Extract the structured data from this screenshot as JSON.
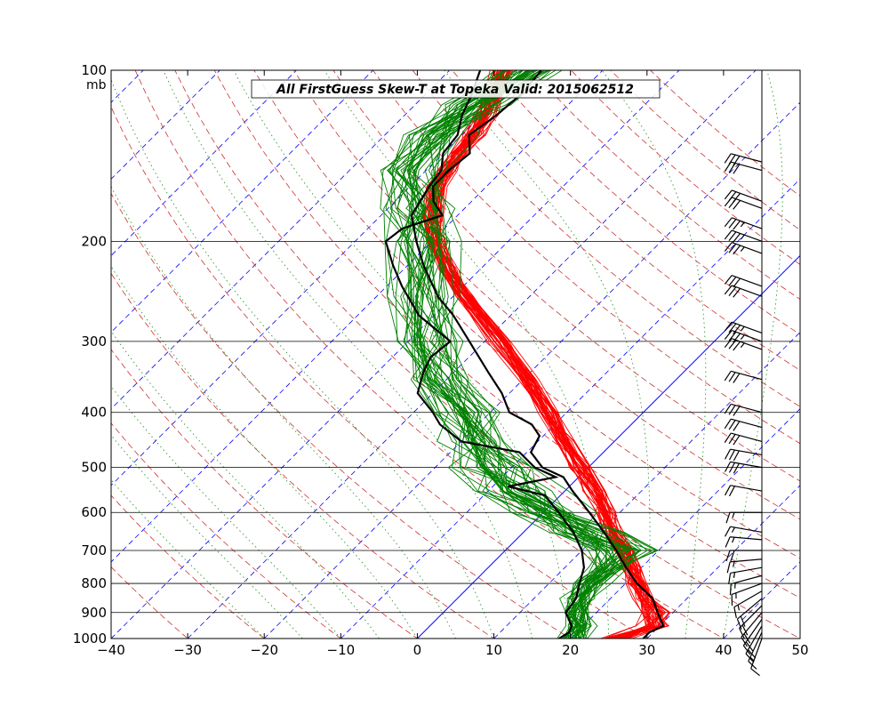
{
  "chart_data": {
    "type": "line",
    "title": "All FirstGuess  Skew-T at Topeka   Valid: 2015062512",
    "pressure_unit": "mb",
    "xlim": [
      -40,
      50
    ],
    "x_ticks": [
      -40,
      -30,
      -20,
      -10,
      0,
      10,
      20,
      30,
      40,
      50
    ],
    "p_ticks": [
      100,
      200,
      300,
      400,
      500,
      600,
      700,
      800,
      900,
      1000
    ],
    "p_range": [
      1000,
      100
    ],
    "colors": {
      "temperature": "#ff0000",
      "dewpoint": "#008000",
      "observed": "#000000",
      "isotherm": "#0000ff",
      "dry_adiabat": "#cc3333",
      "moist_adiabat": "#339933",
      "grid": "#000000"
    },
    "observed_temperature": [
      {
        "p": 1000,
        "t": 29.5
      },
      {
        "p": 975,
        "t": 29.5
      },
      {
        "p": 950,
        "t": 30.5
      },
      {
        "p": 900,
        "t": 28.0
      },
      {
        "p": 850,
        "t": 25.5
      },
      {
        "p": 800,
        "t": 21.5
      },
      {
        "p": 750,
        "t": 18.0
      },
      {
        "p": 700,
        "t": 14.5
      },
      {
        "p": 650,
        "t": 10.5
      },
      {
        "p": 600,
        "t": 6.0
      },
      {
        "p": 550,
        "t": 1.0
      },
      {
        "p": 520,
        "t": -2.0
      },
      {
        "p": 500,
        "t": -6.0
      },
      {
        "p": 470,
        "t": -9.5
      },
      {
        "p": 440,
        "t": -10.5
      },
      {
        "p": 420,
        "t": -13.0
      },
      {
        "p": 400,
        "t": -17.5
      },
      {
        "p": 370,
        "t": -21.0
      },
      {
        "p": 340,
        "t": -25.5
      },
      {
        "p": 300,
        "t": -32.0
      },
      {
        "p": 270,
        "t": -37.5
      },
      {
        "p": 250,
        "t": -42.0
      },
      {
        "p": 220,
        "t": -48.0
      },
      {
        "p": 200,
        "t": -52.0
      },
      {
        "p": 180,
        "t": -56.0
      },
      {
        "p": 160,
        "t": -57.5
      },
      {
        "p": 150,
        "t": -58.0
      },
      {
        "p": 140,
        "t": -60.0
      },
      {
        "p": 130,
        "t": -60.5
      },
      {
        "p": 120,
        "t": -62.5
      },
      {
        "p": 110,
        "t": -64.0
      },
      {
        "p": 100,
        "t": -66.0
      }
    ],
    "observed_dewpoint": [
      {
        "p": 1000,
        "t": 18.5
      },
      {
        "p": 975,
        "t": 19.0
      },
      {
        "p": 950,
        "t": 18.5
      },
      {
        "p": 900,
        "t": 16.0
      },
      {
        "p": 850,
        "t": 15.5
      },
      {
        "p": 800,
        "t": 14.0
      },
      {
        "p": 750,
        "t": 12.5
      },
      {
        "p": 700,
        "t": 10.0
      },
      {
        "p": 650,
        "t": 6.5
      },
      {
        "p": 600,
        "t": 2.0
      },
      {
        "p": 560,
        "t": -2.0
      },
      {
        "p": 540,
        "t": -8.0
      },
      {
        "p": 520,
        "t": -3.0
      },
      {
        "p": 500,
        "t": -7.0
      },
      {
        "p": 470,
        "t": -11.0
      },
      {
        "p": 450,
        "t": -20.0
      },
      {
        "p": 420,
        "t": -25.0
      },
      {
        "p": 400,
        "t": -27.5
      },
      {
        "p": 370,
        "t": -32.0
      },
      {
        "p": 340,
        "t": -34.0
      },
      {
        "p": 320,
        "t": -35.0
      },
      {
        "p": 300,
        "t": -34.5
      },
      {
        "p": 270,
        "t": -42.0
      },
      {
        "p": 240,
        "t": -48.0
      },
      {
        "p": 220,
        "t": -52.0
      },
      {
        "p": 200,
        "t": -56.0
      },
      {
        "p": 190,
        "t": -55.5
      },
      {
        "p": 180,
        "t": -52.0
      },
      {
        "p": 170,
        "t": -55.0
      },
      {
        "p": 160,
        "t": -57.0
      },
      {
        "p": 150,
        "t": -57.0
      },
      {
        "p": 140,
        "t": -56.5
      },
      {
        "p": 130,
        "t": -59.0
      },
      {
        "p": 120,
        "t": -58.0
      },
      {
        "p": 110,
        "t": -57.5
      },
      {
        "p": 100,
        "t": -58.0
      }
    ],
    "ensemble_temperature_mean": [
      {
        "p": 1000,
        "t": 26.0
      },
      {
        "p": 950,
        "t": 29.0
      },
      {
        "p": 900,
        "t": 27.5
      },
      {
        "p": 850,
        "t": 24.5
      },
      {
        "p": 800,
        "t": 21.5
      },
      {
        "p": 750,
        "t": 18.5
      },
      {
        "p": 700,
        "t": 15.5
      },
      {
        "p": 650,
        "t": 11.5
      },
      {
        "p": 600,
        "t": 8.0
      },
      {
        "p": 550,
        "t": 4.0
      },
      {
        "p": 500,
        "t": -1.0
      },
      {
        "p": 450,
        "t": -6.5
      },
      {
        "p": 400,
        "t": -12.5
      },
      {
        "p": 350,
        "t": -19.5
      },
      {
        "p": 300,
        "t": -28.0
      },
      {
        "p": 250,
        "t": -38.5
      },
      {
        "p": 225,
        "t": -44.0
      },
      {
        "p": 200,
        "t": -49.5
      },
      {
        "p": 180,
        "t": -53.5
      },
      {
        "p": 160,
        "t": -56.5
      },
      {
        "p": 150,
        "t": -57.5
      },
      {
        "p": 140,
        "t": -58.0
      },
      {
        "p": 130,
        "t": -58.5
      },
      {
        "p": 120,
        "t": -59.5
      },
      {
        "p": 110,
        "t": -61.0
      },
      {
        "p": 100,
        "t": -63.0
      }
    ],
    "ensemble_dewpoint_mean": [
      {
        "p": 1000,
        "t": 20.5
      },
      {
        "p": 950,
        "t": 19.5
      },
      {
        "p": 900,
        "t": 17.5
      },
      {
        "p": 850,
        "t": 16.0
      },
      {
        "p": 800,
        "t": 15.5
      },
      {
        "p": 750,
        "t": 15.5
      },
      {
        "p": 700,
        "t": 14.5
      },
      {
        "p": 650,
        "t": 8.0
      },
      {
        "p": 600,
        "t": 1.0
      },
      {
        "p": 550,
        "t": -6.0
      },
      {
        "p": 500,
        "t": -12.0
      },
      {
        "p": 450,
        "t": -18.0
      },
      {
        "p": 400,
        "t": -24.0
      },
      {
        "p": 350,
        "t": -31.0
      },
      {
        "p": 300,
        "t": -37.5
      },
      {
        "p": 250,
        "t": -44.0
      },
      {
        "p": 200,
        "t": -51.0
      },
      {
        "p": 175,
        "t": -56.0
      },
      {
        "p": 150,
        "t": -62.0
      },
      {
        "p": 130,
        "t": -63.0
      },
      {
        "p": 115,
        "t": -62.0
      },
      {
        "p": 100,
        "t": -60.0
      }
    ],
    "ensemble_members": 40,
    "wind_barbs": [
      {
        "p": 1000,
        "dir": 200,
        "spd": 10
      },
      {
        "p": 975,
        "dir": 205,
        "spd": 15
      },
      {
        "p": 950,
        "dir": 210,
        "spd": 20
      },
      {
        "p": 925,
        "dir": 215,
        "spd": 20
      },
      {
        "p": 900,
        "dir": 220,
        "spd": 20
      },
      {
        "p": 875,
        "dir": 225,
        "spd": 20
      },
      {
        "p": 850,
        "dir": 230,
        "spd": 20
      },
      {
        "p": 825,
        "dir": 240,
        "spd": 15
      },
      {
        "p": 800,
        "dir": 250,
        "spd": 15
      },
      {
        "p": 775,
        "dir": 255,
        "spd": 15
      },
      {
        "p": 750,
        "dir": 260,
        "spd": 15
      },
      {
        "p": 725,
        "dir": 265,
        "spd": 15
      },
      {
        "p": 700,
        "dir": 270,
        "spd": 20
      },
      {
        "p": 670,
        "dir": 275,
        "spd": 15
      },
      {
        "p": 650,
        "dir": 280,
        "spd": 15
      },
      {
        "p": 600,
        "dir": 270,
        "spd": 15
      },
      {
        "p": 550,
        "dir": 280,
        "spd": 20
      },
      {
        "p": 500,
        "dir": 280,
        "spd": 30
      },
      {
        "p": 475,
        "dir": 280,
        "spd": 30
      },
      {
        "p": 450,
        "dir": 285,
        "spd": 30
      },
      {
        "p": 425,
        "dir": 285,
        "spd": 30
      },
      {
        "p": 400,
        "dir": 285,
        "spd": 30
      },
      {
        "p": 350,
        "dir": 285,
        "spd": 30
      },
      {
        "p": 310,
        "dir": 290,
        "spd": 35
      },
      {
        "p": 300,
        "dir": 290,
        "spd": 35
      },
      {
        "p": 290,
        "dir": 290,
        "spd": 35
      },
      {
        "p": 250,
        "dir": 290,
        "spd": 30
      },
      {
        "p": 240,
        "dir": 290,
        "spd": 30
      },
      {
        "p": 210,
        "dir": 290,
        "spd": 35
      },
      {
        "p": 200,
        "dir": 290,
        "spd": 35
      },
      {
        "p": 190,
        "dir": 290,
        "spd": 35
      },
      {
        "p": 175,
        "dir": 290,
        "spd": 30
      },
      {
        "p": 170,
        "dir": 290,
        "spd": 30
      },
      {
        "p": 150,
        "dir": 285,
        "spd": 30
      },
      {
        "p": 145,
        "dir": 285,
        "spd": 30
      }
    ]
  }
}
